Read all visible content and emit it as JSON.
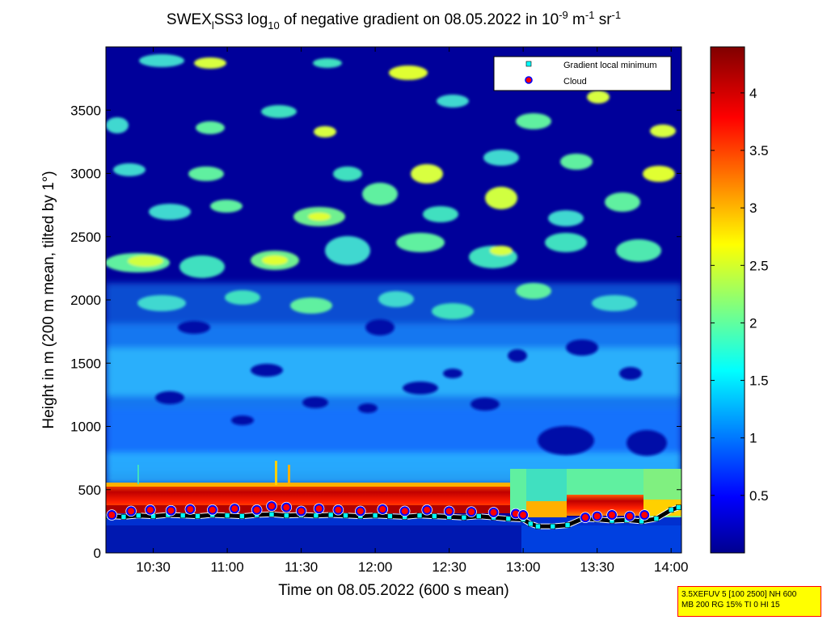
{
  "chart_data": {
    "type": "heatmap",
    "title": {
      "part1": "SWEX",
      "sub1": "l",
      "part2": "SS3 log",
      "sub2": "10",
      "part3": " of negative gradient on 08.05.2022 in 10",
      "sup1": "-9",
      "part4": " m",
      "sup2": "-1",
      "part5": " sr",
      "sup3": "-1"
    },
    "xlabel": "Time on 08.05.2022 (600 s mean)",
    "ylabel": "Height in m (200 m mean, tilted by 1°)",
    "xlim_hours": [
      10.18,
      14.07
    ],
    "ylim": [
      0,
      4000
    ],
    "x_ticks": [
      {
        "hour": 10.5,
        "label": "10:30"
      },
      {
        "hour": 11.0,
        "label": "11:00"
      },
      {
        "hour": 11.5,
        "label": "11:30"
      },
      {
        "hour": 12.0,
        "label": "12:00"
      },
      {
        "hour": 12.5,
        "label": "12:30"
      },
      {
        "hour": 13.0,
        "label": "13:00"
      },
      {
        "hour": 13.5,
        "label": "13:30"
      },
      {
        "hour": 14.0,
        "label": "14:00"
      }
    ],
    "y_ticks": [
      {
        "value": 0,
        "label": "0"
      },
      {
        "value": 500,
        "label": "500"
      },
      {
        "value": 1000,
        "label": "1000"
      },
      {
        "value": 1500,
        "label": "1500"
      },
      {
        "value": 2000,
        "label": "2000"
      },
      {
        "value": 2500,
        "label": "2500"
      },
      {
        "value": 3000,
        "label": "3000"
      },
      {
        "value": 3500,
        "label": "3500"
      }
    ],
    "colorbar": {
      "range": [
        0,
        4.4
      ],
      "ticks": [
        {
          "value": 0.5,
          "label": "0.5"
        },
        {
          "value": 1,
          "label": "1"
        },
        {
          "value": 1.5,
          "label": "1.5"
        },
        {
          "value": 2,
          "label": "2"
        },
        {
          "value": 2.5,
          "label": "2.5"
        },
        {
          "value": 3,
          "label": "3"
        },
        {
          "value": 3.5,
          "label": "3.5"
        },
        {
          "value": 4,
          "label": "4"
        }
      ],
      "colormap": "jet"
    },
    "legend": {
      "placement": "top-right",
      "entries": [
        {
          "label": "Gradient local minimum",
          "marker": "square",
          "color": "#00ffff"
        },
        {
          "label": "Cloud",
          "marker": "circle",
          "color": "#ff0000",
          "edge": "#0000ff"
        }
      ]
    },
    "series": [
      {
        "name": "Gradient local minimum",
        "x_hours": [
          10.2,
          10.3,
          10.4,
          10.5,
          10.6,
          10.7,
          10.8,
          10.9,
          11.0,
          11.1,
          11.2,
          11.3,
          11.4,
          11.5,
          11.6,
          11.7,
          11.8,
          11.9,
          12.0,
          12.1,
          12.2,
          12.3,
          12.4,
          12.5,
          12.6,
          12.7,
          12.8,
          12.9,
          13.0,
          13.05,
          13.1,
          13.2,
          13.3,
          13.4,
          13.5,
          13.6,
          13.7,
          13.8,
          13.9,
          14.0,
          14.05
        ],
        "y": [
          290,
          285,
          295,
          290,
          300,
          295,
          290,
          300,
          295,
          290,
          300,
          305,
          295,
          300,
          295,
          300,
          295,
          290,
          295,
          290,
          285,
          295,
          290,
          285,
          280,
          290,
          280,
          270,
          265,
          230,
          210,
          210,
          220,
          270,
          265,
          255,
          260,
          250,
          270,
          340,
          360
        ]
      },
      {
        "name": "Cloud",
        "x_hours": [
          10.22,
          10.35,
          10.48,
          10.62,
          10.75,
          10.9,
          11.05,
          11.2,
          11.3,
          11.4,
          11.5,
          11.62,
          11.75,
          11.9,
          12.05,
          12.2,
          12.35,
          12.5,
          12.65,
          12.8,
          12.95,
          13.0,
          13.42,
          13.5,
          13.6,
          13.72,
          13.82
        ],
        "y": [
          300,
          330,
          340,
          335,
          345,
          340,
          350,
          340,
          370,
          360,
          330,
          350,
          340,
          330,
          345,
          330,
          340,
          330,
          325,
          320,
          310,
          300,
          280,
          290,
          300,
          290,
          300
        ]
      }
    ]
  },
  "info_box": {
    "line1": "3.5XEFUV 5 [100 2500] NH 600",
    "line2": "MB 200 RG 15% TI 0 HI 15"
  }
}
